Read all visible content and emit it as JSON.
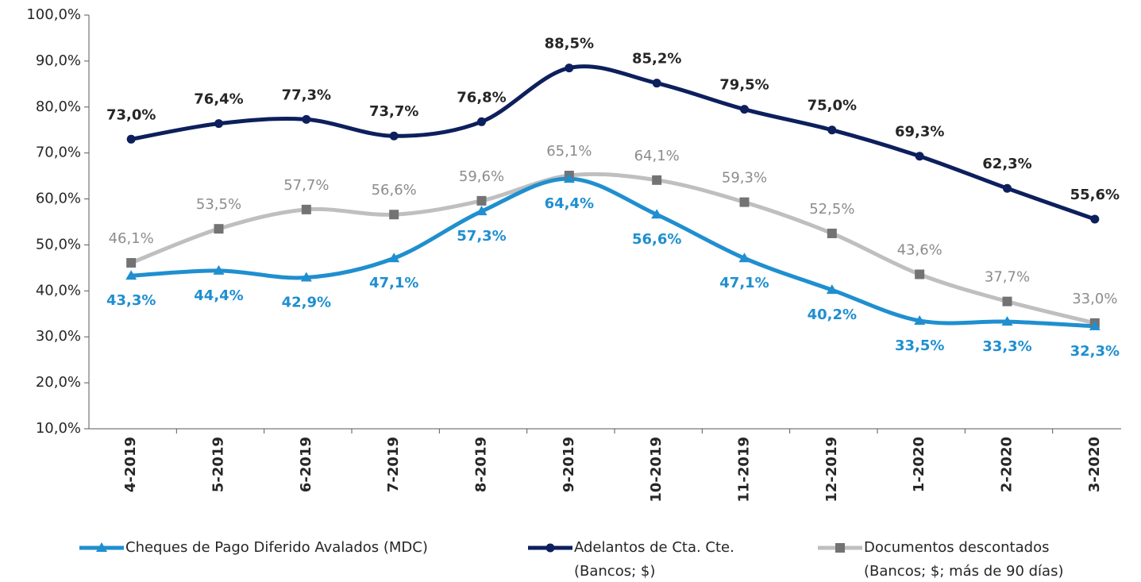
{
  "chart_data": {
    "type": "line",
    "categories": [
      "4-2019",
      "5-2019",
      "6-2019",
      "7-2019",
      "8-2019",
      "9-2019",
      "10-2019",
      "11-2019",
      "12-2019",
      "1-2020",
      "2-2020",
      "3-2020"
    ],
    "series": [
      {
        "name": "Cheques de Pago Diferido Avalados (MDC)",
        "color": "#1f8fd0",
        "label_color": "#1f8fd0",
        "marker": "triangle",
        "values": [
          43.3,
          44.4,
          42.9,
          47.1,
          57.3,
          64.4,
          56.6,
          47.1,
          40.2,
          33.5,
          33.3,
          32.3
        ],
        "value_labels": [
          "43,3%",
          "44,4%",
          "42,9%",
          "47,1%",
          "57,3%",
          "64,4%",
          "56,6%",
          "47,1%",
          "40,2%",
          "33,5%",
          "33,3%",
          "32,3%"
        ]
      },
      {
        "name": "Adelantos de Cta. Cte.\n(Bancos; $)",
        "color": "#0d1f5c",
        "label_color": "#262626",
        "marker": "circle",
        "values": [
          73.0,
          76.4,
          77.3,
          73.7,
          76.8,
          88.5,
          85.2,
          79.5,
          75.0,
          69.3,
          62.3,
          55.6
        ],
        "value_labels": [
          "73,0%",
          "76,4%",
          "77,3%",
          "73,7%",
          "76,8%",
          "88,5%",
          "85,2%",
          "79,5%",
          "75,0%",
          "69,3%",
          "62,3%",
          "55,6%"
        ]
      },
      {
        "name": "Documentos descontados\n(Bancos; $; más de 90 días)",
        "color": "#bfbfbf",
        "label_color": "#8c8c8c",
        "marker_color": "#737373",
        "marker": "square",
        "values": [
          46.1,
          53.5,
          57.7,
          56.6,
          59.6,
          65.1,
          64.1,
          59.3,
          52.5,
          43.6,
          37.7,
          33.0
        ],
        "value_labels": [
          "46,1%",
          "53,5%",
          "57,7%",
          "56,6%",
          "59,6%",
          "65,1%",
          "64,1%",
          "59,3%",
          "52,5%",
          "43,6%",
          "37,7%",
          "33,0%"
        ]
      }
    ],
    "ylim": [
      10,
      100
    ],
    "yticks": [
      {
        "value": 10,
        "label": "10,0%"
      },
      {
        "value": 20,
        "label": "20,0%"
      },
      {
        "value": 30,
        "label": "30,0%"
      },
      {
        "value": 40,
        "label": "40,0%"
      },
      {
        "value": 50,
        "label": "50,0%"
      },
      {
        "value": 60,
        "label": "60,0%"
      },
      {
        "value": 70,
        "label": "70,0%"
      },
      {
        "value": 80,
        "label": "80,0%"
      },
      {
        "value": 90,
        "label": "90,0%"
      },
      {
        "value": 100,
        "label": "100,0%"
      }
    ],
    "grid": false,
    "legend": "bottom"
  }
}
